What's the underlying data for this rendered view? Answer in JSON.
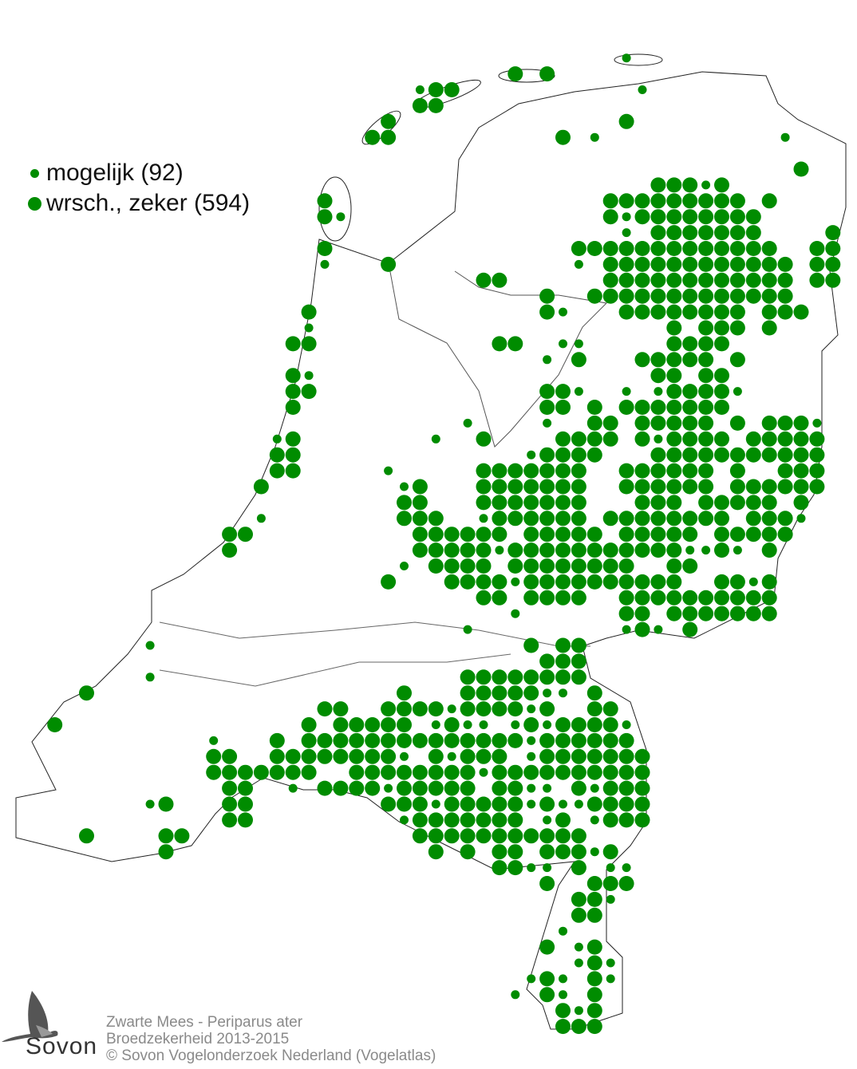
{
  "colors": {
    "dot": "#008c00",
    "outline": "#222222",
    "caption": "#8a8a8a"
  },
  "legend": [
    {
      "label": "mogelijk (92)",
      "size": "small"
    },
    {
      "label": "wrsch., zeker (594)",
      "size": "large"
    }
  ],
  "caption": {
    "title": "Zwarte Mees - Periparus ater",
    "subtitle": "Broedzekerheid 2013-2015",
    "copyright": "© Sovon Vogelonderzoek Nederland (Vogelatlas)"
  },
  "logo": {
    "text": "Sovon",
    "icon": "swallow-icon"
  },
  "grid": [
    {
      "r": 3,
      "L": [],
      "s": [
        39
      ]
    },
    {
      "r": 4,
      "L": [
        32,
        34
      ],
      "s": []
    },
    {
      "r": 5,
      "L": [
        27,
        28
      ],
      "s": [
        26,
        40
      ]
    },
    {
      "r": 6,
      "L": [
        26,
        27
      ],
      "s": []
    },
    {
      "r": 7,
      "L": [
        24,
        39
      ],
      "s": []
    },
    {
      "r": 8,
      "L": [
        23,
        24,
        35
      ],
      "s": [
        37,
        49
      ]
    },
    {
      "r": 10,
      "L": [
        50
      ],
      "s": []
    },
    {
      "r": 11,
      "L": [
        41,
        42,
        43,
        45
      ],
      "s": [
        44
      ]
    },
    {
      "r": 12,
      "L": [
        20,
        38,
        39,
        40,
        41,
        42,
        43,
        44,
        45,
        46,
        48
      ],
      "s": []
    },
    {
      "r": 13,
      "L": [
        20,
        38,
        40,
        41,
        42,
        43,
        44,
        45,
        46,
        47
      ],
      "s": [
        21,
        39
      ]
    },
    {
      "r": 14,
      "L": [
        41,
        42,
        43,
        44,
        45,
        46,
        47,
        52
      ],
      "s": [
        39
      ]
    },
    {
      "r": 15,
      "L": [
        20,
        36,
        37,
        38,
        39,
        40,
        41,
        42,
        43,
        44,
        45,
        46,
        47,
        48,
        51,
        52
      ],
      "s": []
    },
    {
      "r": 16,
      "L": [
        24,
        38,
        39,
        40,
        41,
        42,
        43,
        44,
        45,
        46,
        47,
        48,
        49,
        51,
        52
      ],
      "s": [
        20,
        36
      ]
    },
    {
      "r": 17,
      "L": [
        30,
        31,
        38,
        39,
        40,
        41,
        42,
        43,
        44,
        45,
        46,
        47,
        48,
        49,
        51,
        52
      ],
      "s": []
    },
    {
      "r": 18,
      "L": [
        34,
        37,
        38,
        39,
        40,
        41,
        42,
        43,
        44,
        45,
        46,
        47,
        48,
        49
      ],
      "s": []
    },
    {
      "r": 19,
      "L": [
        19,
        34,
        39,
        40,
        41,
        42,
        43,
        44,
        45,
        46,
        48,
        49,
        50
      ],
      "s": [
        35
      ]
    },
    {
      "r": 20,
      "L": [
        42,
        44,
        45,
        46,
        48
      ],
      "s": [
        19
      ]
    },
    {
      "r": 21,
      "L": [
        18,
        19,
        31,
        32,
        42,
        43,
        44,
        45
      ],
      "s": [
        35,
        36
      ]
    },
    {
      "r": 22,
      "L": [
        36,
        40,
        41,
        42,
        43,
        44,
        46
      ],
      "s": [
        34
      ]
    },
    {
      "r": 23,
      "L": [
        18,
        41,
        42,
        44,
        45
      ],
      "s": [
        19
      ]
    },
    {
      "r": 24,
      "L": [
        18,
        19,
        34,
        35,
        42,
        43,
        44,
        45
      ],
      "s": [
        36,
        39,
        41,
        46
      ]
    },
    {
      "r": 25,
      "L": [
        18,
        34,
        35,
        37,
        39,
        40,
        41,
        42,
        43,
        44,
        45
      ],
      "s": []
    },
    {
      "r": 26,
      "L": [
        37,
        38,
        40,
        41,
        42,
        43,
        44,
        46,
        48,
        49,
        50
      ],
      "s": [
        29,
        34,
        51
      ]
    },
    {
      "r": 27,
      "L": [
        18,
        30,
        35,
        36,
        37,
        38,
        40,
        42,
        43,
        44,
        45,
        47,
        48,
        49,
        50,
        51
      ],
      "s": [
        17,
        27,
        41
      ]
    },
    {
      "r": 28,
      "L": [
        17,
        18,
        34,
        35,
        36,
        37,
        41,
        42,
        43,
        44,
        45,
        46,
        47,
        48,
        49,
        50,
        51
      ],
      "s": [
        33
      ]
    },
    {
      "r": 29,
      "L": [
        17,
        18,
        30,
        31,
        32,
        33,
        34,
        35,
        36,
        39,
        40,
        41,
        42,
        43,
        44,
        46,
        49,
        50,
        51
      ],
      "s": [
        24
      ]
    },
    {
      "r": 30,
      "L": [
        16,
        26,
        30,
        31,
        32,
        33,
        34,
        35,
        36,
        39,
        40,
        41,
        42,
        43,
        44,
        46,
        47,
        48,
        49,
        50,
        51
      ],
      "s": [
        25
      ]
    },
    {
      "r": 31,
      "L": [
        25,
        26,
        30,
        31,
        32,
        33,
        34,
        35,
        36,
        40,
        41,
        42,
        44,
        45,
        46,
        47,
        48,
        50
      ],
      "s": []
    },
    {
      "r": 32,
      "L": [
        25,
        26,
        27,
        31,
        32,
        33,
        34,
        35,
        36,
        38,
        39,
        40,
        41,
        42,
        43,
        44,
        45,
        47,
        48,
        49
      ],
      "s": [
        16,
        30,
        50
      ]
    },
    {
      "r": 33,
      "L": [
        14,
        15,
        26,
        27,
        28,
        29,
        30,
        31,
        33,
        34,
        35,
        36,
        37,
        39,
        40,
        41,
        42,
        43,
        45,
        46,
        47,
        48,
        49
      ],
      "s": []
    },
    {
      "r": 34,
      "L": [
        14,
        26,
        27,
        28,
        29,
        30,
        32,
        33,
        34,
        35,
        36,
        37,
        38,
        39,
        40,
        41,
        42,
        45,
        48
      ],
      "s": [
        31,
        43,
        44,
        46
      ]
    },
    {
      "r": 35,
      "L": [
        27,
        28,
        29,
        30,
        32,
        33,
        34,
        35,
        36,
        37,
        38,
        39,
        42,
        43
      ],
      "s": [
        25
      ]
    },
    {
      "r": 36,
      "L": [
        24,
        28,
        29,
        30,
        31,
        33,
        34,
        35,
        36,
        37,
        38,
        39,
        40,
        41,
        42,
        45,
        46,
        48
      ],
      "s": [
        32,
        47
      ]
    },
    {
      "r": 37,
      "L": [
        30,
        31,
        33,
        34,
        35,
        36,
        39,
        40,
        41,
        42,
        43,
        44,
        45,
        46,
        47,
        48
      ],
      "s": []
    },
    {
      "r": 38,
      "L": [
        39,
        40,
        42,
        43,
        44,
        45,
        46,
        47,
        48
      ],
      "s": [
        32
      ]
    },
    {
      "r": 39,
      "L": [
        40,
        43
      ],
      "s": [
        29,
        39,
        41
      ]
    },
    {
      "r": 40,
      "L": [
        33,
        35,
        36
      ],
      "s": [
        9
      ]
    },
    {
      "r": 41,
      "L": [
        34,
        35,
        36
      ],
      "s": []
    },
    {
      "r": 42,
      "L": [
        29,
        30,
        31,
        32,
        33,
        34,
        35,
        36
      ],
      "s": [
        9
      ]
    },
    {
      "r": 43,
      "L": [
        5,
        25,
        29,
        30,
        31,
        32,
        33,
        37
      ],
      "s": [
        34,
        35
      ]
    },
    {
      "r": 44,
      "L": [
        20,
        21,
        24,
        25,
        26,
        27,
        29,
        30,
        31,
        32,
        34,
        37,
        38
      ],
      "s": [
        28,
        33
      ]
    },
    {
      "r": 45,
      "L": [
        3,
        19,
        21,
        22,
        23,
        24,
        25,
        28,
        33,
        35,
        36,
        37,
        38
      ],
      "s": [
        27,
        29,
        30,
        32,
        34,
        39
      ]
    },
    {
      "r": 46,
      "L": [
        17,
        19,
        20,
        21,
        22,
        23,
        24,
        25,
        26,
        27,
        28,
        29,
        30,
        31,
        32,
        34,
        35,
        36,
        37,
        38,
        39
      ],
      "s": [
        13,
        33
      ]
    },
    {
      "r": 47,
      "L": [
        13,
        14,
        17,
        18,
        19,
        20,
        21,
        22,
        23,
        24,
        27,
        29,
        30,
        31,
        34,
        35,
        36,
        37,
        38,
        39,
        40
      ],
      "s": [
        25,
        28,
        33
      ]
    },
    {
      "r": 48,
      "L": [
        13,
        14,
        15,
        16,
        17,
        18,
        19,
        22,
        23,
        24,
        25,
        26,
        27,
        28,
        29,
        31,
        32,
        33,
        34,
        35,
        36,
        37,
        38,
        39,
        40
      ],
      "s": [
        30
      ]
    },
    {
      "r": 49,
      "L": [
        14,
        15,
        20,
        21,
        22,
        23,
        25,
        26,
        27,
        28,
        29,
        31,
        32,
        36,
        38,
        39,
        40
      ],
      "s": [
        18,
        24,
        33,
        34,
        37
      ]
    },
    {
      "r": 50,
      "L": [
        10,
        14,
        15,
        24,
        25,
        26,
        28,
        29,
        30,
        31,
        32,
        34,
        37,
        38,
        39,
        40
      ],
      "s": [
        9,
        27,
        33,
        35,
        36
      ]
    },
    {
      "r": 51,
      "L": [
        14,
        15,
        26,
        27,
        28,
        29,
        30,
        31,
        32,
        35,
        38,
        39,
        40
      ],
      "s": [
        25,
        34,
        37
      ]
    },
    {
      "r": 52,
      "L": [
        5,
        10,
        11,
        26,
        27,
        28,
        29,
        30,
        31,
        32,
        33,
        34,
        35,
        36
      ],
      "s": []
    },
    {
      "r": 53,
      "L": [
        10,
        27,
        29,
        31,
        32,
        34,
        35,
        36,
        38
      ],
      "s": [
        37
      ]
    },
    {
      "r": 54,
      "L": [
        31,
        32,
        36
      ],
      "s": [
        33,
        34,
        38,
        39
      ]
    },
    {
      "r": 55,
      "L": [
        34,
        37,
        38,
        39
      ],
      "s": []
    },
    {
      "r": 56,
      "L": [
        36,
        37
      ],
      "s": [
        38
      ]
    },
    {
      "r": 57,
      "L": [
        36,
        37
      ],
      "s": []
    },
    {
      "r": 58,
      "L": [],
      "s": [
        35
      ]
    },
    {
      "r": 59,
      "L": [
        34,
        37
      ],
      "s": [
        36
      ]
    },
    {
      "r": 60,
      "L": [
        37
      ],
      "s": [
        36,
        38
      ]
    },
    {
      "r": 61,
      "L": [
        34,
        37
      ],
      "s": [
        33,
        35,
        38
      ]
    },
    {
      "r": 62,
      "L": [
        34,
        37
      ],
      "s": [
        32,
        35
      ]
    },
    {
      "r": 63,
      "L": [
        35,
        37
      ],
      "s": [
        36
      ]
    },
    {
      "r": 64,
      "L": [
        35,
        36,
        37
      ],
      "s": []
    }
  ]
}
